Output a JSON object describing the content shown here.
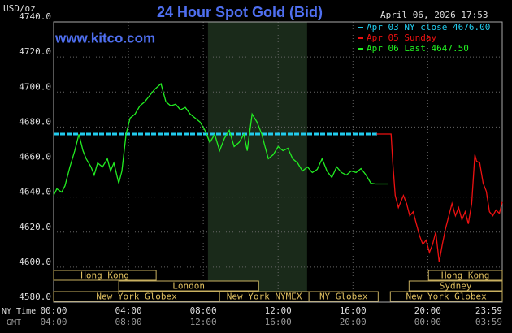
{
  "chart_data": {
    "type": "line",
    "title": "24 Hour Spot Gold (Bid)",
    "website": "www.kitco.com",
    "timestamp": "April 06, 2026 17:53",
    "y_label": "USD/oz",
    "x_label": "NY Time",
    "x2_label": "GMT",
    "xlim": [
      0,
      23.983
    ],
    "ylim": [
      4580,
      4740
    ],
    "xticks": [
      {
        "value": 0,
        "label": "00:00"
      },
      {
        "value": 4,
        "label": "04:00"
      },
      {
        "value": 8,
        "label": "08:00"
      },
      {
        "value": 12,
        "label": "12:00"
      },
      {
        "value": 16,
        "label": "16:00"
      },
      {
        "value": 20,
        "label": "20:00"
      },
      {
        "value": 23.983,
        "label": "23:59"
      }
    ],
    "x2ticks": [
      "04:00",
      "08:00",
      "12:00",
      "16:00",
      "20:00",
      "00:00",
      "03:59"
    ],
    "yticks": [
      {
        "value": 4580,
        "label": "4580.0"
      },
      {
        "value": 4600,
        "label": "4600.0"
      },
      {
        "value": 4620,
        "label": "4620.0"
      },
      {
        "value": 4640,
        "label": "4640.0"
      },
      {
        "value": 4660,
        "label": "4660.0"
      },
      {
        "value": 4680,
        "label": "4680.0"
      },
      {
        "value": 4700,
        "label": "4700.0"
      },
      {
        "value": 4720,
        "label": "4720.0"
      },
      {
        "value": 4740,
        "label": "4740.0"
      }
    ],
    "grid": true,
    "highlight_band": [
      8.25,
      13.55
    ],
    "series": [
      {
        "name": "Apr 03 NY close 4676.00",
        "color": "#22ccee",
        "dashed": true,
        "x": [
          0,
          17.3
        ],
        "values": [
          4676,
          4676
        ]
      },
      {
        "name": "Apr 05 Sunday",
        "color": "#ee1111",
        "dashed": false,
        "x": [
          17.26,
          18.04,
          18.13,
          18.26,
          18.43,
          18.7,
          18.87,
          19.04,
          19.22,
          19.39,
          19.57,
          19.74,
          19.91,
          20.09,
          20.26,
          20.43,
          20.61,
          20.78,
          20.96,
          21.13,
          21.3,
          21.48,
          21.65,
          21.83,
          22.0,
          22.17,
          22.35,
          22.52,
          22.61,
          22.78,
          22.96,
          23.13,
          23.3,
          23.48,
          23.65,
          23.83,
          23.98
        ],
        "values": [
          4676,
          4676,
          4659.5,
          4640.9,
          4634.0,
          4640.9,
          4636.3,
          4629.3,
          4631.6,
          4624.7,
          4617.7,
          4613.0,
          4615.4,
          4608.4,
          4613.0,
          4620.0,
          4602.8,
          4613.0,
          4622.3,
          4629.3,
          4636.3,
          4629.3,
          4634.0,
          4627.0,
          4631.6,
          4624.7,
          4636.3,
          4664.2,
          4660.5,
          4659.5,
          4647.9,
          4643.3,
          4631.6,
          4629.3,
          4632.6,
          4630.7,
          4637.2
        ]
      },
      {
        "name": "Apr 06 Last 4647.50",
        "color": "#22ee22",
        "dashed": false,
        "x": [
          0,
          0.17,
          0.43,
          0.61,
          0.87,
          1.13,
          1.35,
          1.57,
          1.74,
          2.0,
          2.17,
          2.35,
          2.61,
          2.87,
          3.04,
          3.22,
          3.48,
          3.65,
          3.87,
          4.09,
          4.35,
          4.61,
          4.87,
          5.04,
          5.39,
          5.74,
          6.0,
          6.26,
          6.52,
          6.78,
          7.04,
          7.3,
          7.57,
          7.83,
          8.09,
          8.35,
          8.61,
          8.87,
          9.13,
          9.39,
          9.65,
          9.91,
          10.17,
          10.35,
          10.61,
          10.87,
          11.13,
          11.3,
          11.48,
          11.74,
          12.0,
          12.26,
          12.52,
          12.78,
          13.04,
          13.3,
          13.57,
          13.83,
          14.09,
          14.35,
          14.61,
          14.87,
          15.13,
          15.39,
          15.65,
          15.91,
          16.17,
          16.43,
          16.7,
          16.96,
          17.22,
          17.87
        ],
        "values": [
          4641,
          4644.7,
          4642.8,
          4646.5,
          4657.2,
          4666.5,
          4675.8,
          4666.5,
          4661.9,
          4657.2,
          4652.6,
          4659.5,
          4657.2,
          4661.9,
          4654.9,
          4659.5,
          4647.9,
          4654.9,
          4675.8,
          4685.1,
          4687.4,
          4692.1,
          4694.4,
          4696.7,
          4701.4,
          4704.7,
          4694.4,
          4692.1,
          4693.0,
          4689.8,
          4691.2,
          4687.4,
          4685.1,
          4682.8,
          4678.1,
          4671.2,
          4675.8,
          4666.5,
          4673.5,
          4678.1,
          4668.8,
          4671.2,
          4675.8,
          4666.5,
          4687.4,
          4682.8,
          4675.8,
          4668.8,
          4661.9,
          4664.2,
          4668.8,
          4666.5,
          4667.9,
          4661.9,
          4659.5,
          4654.9,
          4657.2,
          4654.0,
          4655.8,
          4661.9,
          4654.9,
          4651.2,
          4657.2,
          4654.0,
          4652.6,
          4654.9,
          4654.0,
          4656.3,
          4652.6,
          4647.9,
          4647.5,
          4647.5
        ]
      }
    ],
    "sessions": [
      {
        "label": "Hong Kong",
        "row": 0,
        "start": 0,
        "end": 5.48
      },
      {
        "label": "Hong Kong",
        "row": 0,
        "start": 20.04,
        "end": 23.983
      },
      {
        "label": "London",
        "row": 1,
        "start": 3.48,
        "end": 10.96
      },
      {
        "label": "Sydney",
        "row": 1,
        "start": 19.0,
        "end": 23.983
      },
      {
        "label": "New York Globex",
        "row": 2,
        "start": 0,
        "end": 8.87
      },
      {
        "label": "New York NYMEX",
        "row": 2,
        "start": 8.87,
        "end": 13.65
      },
      {
        "label": "NY Globex",
        "row": 2,
        "start": 13.65,
        "end": 17.35
      },
      {
        "label": "New York Globex",
        "row": 2,
        "start": 18.0,
        "end": 23.983
      }
    ]
  }
}
